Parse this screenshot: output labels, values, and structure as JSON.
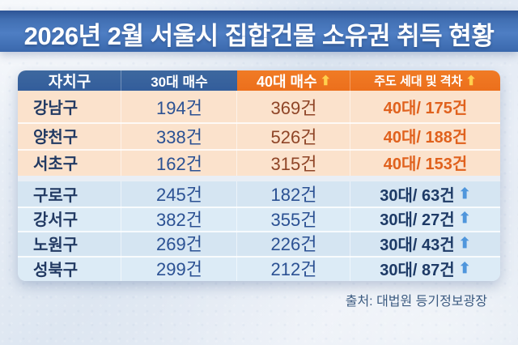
{
  "title": "2026년 2월 서울시 집합건물 소유권 취득 현황",
  "accent_colors": {
    "header_blue": "#33609e",
    "header_orange": "#ee7623",
    "row_peach": "#fbe2cc",
    "row_blue": "#d9e7f4",
    "lead_orange": "#e0611d",
    "navy_text": "#1d3a66",
    "arrow_yellow": "#ffd04e",
    "arrow_blue": "#4f96dc"
  },
  "icons": {
    "up_arrow": "⬆"
  },
  "chart_data": {
    "type": "table",
    "title": "2026년 2월 서울시 집합건물 소유권 취득 현황",
    "columns": [
      "자치구",
      "30대 매수",
      "40대 매수",
      "주도 세대 및 격차"
    ],
    "rows": [
      [
        "강남구",
        "194건",
        "369건",
        "40대/175건"
      ],
      [
        "양천구",
        "338건",
        "526건",
        "40대/188건"
      ],
      [
        "서초구",
        "162건",
        "315건",
        "40대/153건"
      ],
      [
        "구로구",
        "245건",
        "182건",
        "30대/63건"
      ],
      [
        "강서구",
        "382건",
        "355건",
        "30대/27건"
      ],
      [
        "노원구",
        "269건",
        "226건",
        "30대/43건"
      ],
      [
        "성북구",
        "299건",
        "212건",
        "30대/87건"
      ]
    ],
    "notes": "rows 1-3 leading generation 40대 (orange), rows 4-7 leading generation 30대 (navy with blue up arrow)"
  },
  "table": {
    "headers": {
      "h1": "자치구",
      "h2": "30대 매수",
      "h3": "40대 매수",
      "h4": "주도 세대 및 격차"
    },
    "rows": [
      {
        "district": "강남구",
        "d30": "194건",
        "d40": "369건",
        "lead": "40대/ 175건"
      },
      {
        "district": "양천구",
        "d30": "338건",
        "d40": "526건",
        "lead": "40대/ 188건"
      },
      {
        "district": "서초구",
        "d30": "162건",
        "d40": "315건",
        "lead": "40대/ 153건"
      },
      {
        "district": "구로구",
        "d30": "245건",
        "d40": "182건",
        "lead": "30대/ 63건"
      },
      {
        "district": "강서구",
        "d30": "382건",
        "d40": "355건",
        "lead": "30대/ 27건"
      },
      {
        "district": "노원구",
        "d30": "269건",
        "d40": "226건",
        "lead": "30대/ 43건"
      },
      {
        "district": "성북구",
        "d30": "299건",
        "d40": "212건",
        "lead": "30대/ 87건"
      }
    ]
  },
  "source": "출처: 대법원 등기정보광장"
}
